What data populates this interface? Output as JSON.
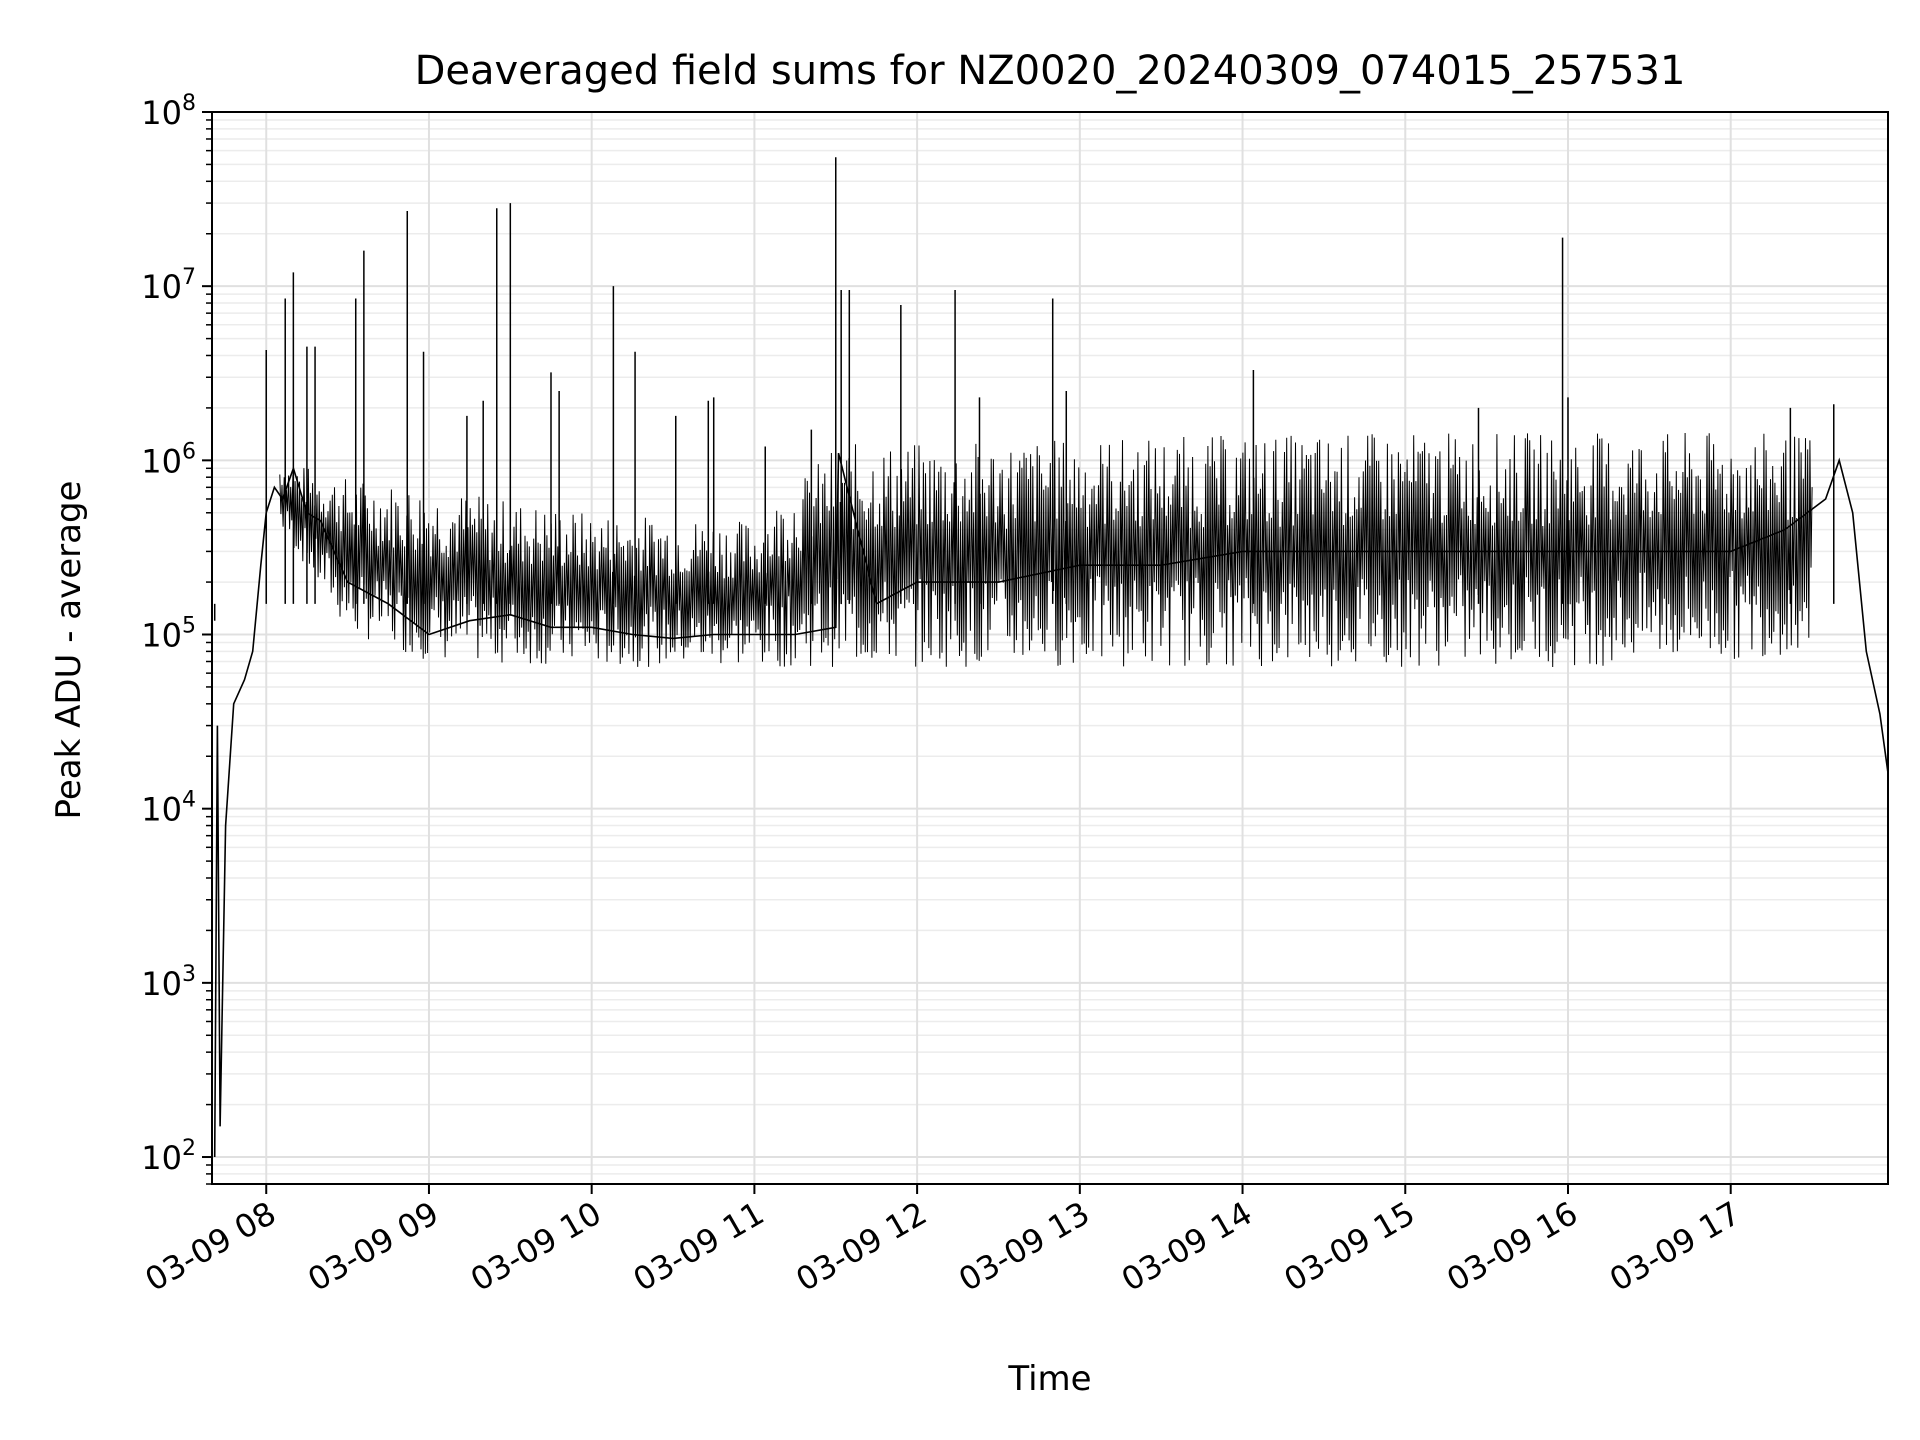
{
  "chart_data": {
    "type": "line",
    "title": "Deaveraged field sums for NZ0020_20240309_074015_257531",
    "xlabel": "Time",
    "ylabel": "Peak ADU - average",
    "yscale": "log",
    "ylim": [
      70,
      100000000
    ],
    "xlim": [
      "2024-03-09 07:40",
      "2024-03-09 17:58"
    ],
    "grid": true,
    "x_ticks": [
      "03-09 08",
      "03-09 09",
      "03-09 10",
      "03-09 11",
      "03-09 12",
      "03-09 13",
      "03-09 14",
      "03-09 15",
      "03-09 16",
      "03-09 17"
    ],
    "y_ticks": [
      100,
      1000,
      10000,
      100000,
      1000000,
      10000000,
      100000000
    ],
    "y_tick_labels": [
      {
        "base": "10",
        "exp": "2"
      },
      {
        "base": "10",
        "exp": "3"
      },
      {
        "base": "10",
        "exp": "4"
      },
      {
        "base": "10",
        "exp": "5"
      },
      {
        "base": "10",
        "exp": "6"
      },
      {
        "base": "10",
        "exp": "7"
      },
      {
        "base": "10",
        "exp": "8"
      }
    ],
    "series": [
      {
        "color": "#000000",
        "x": [
          "2024-03-09 07:41",
          "2024-03-09 07:42",
          "2024-03-09 07:43",
          "2024-03-09 07:45",
          "2024-03-09 07:48",
          "2024-03-09 07:52",
          "2024-03-09 07:55",
          "2024-03-09 07:58",
          "2024-03-09 08:00",
          "2024-03-09 08:03",
          "2024-03-09 08:06",
          "2024-03-09 08:10",
          "2024-03-09 08:15",
          "2024-03-09 08:20",
          "2024-03-09 08:30",
          "2024-03-09 08:45",
          "2024-03-09 09:00",
          "2024-03-09 09:15",
          "2024-03-09 09:30",
          "2024-03-09 09:45",
          "2024-03-09 10:00",
          "2024-03-09 10:15",
          "2024-03-09 10:30",
          "2024-03-09 10:45",
          "2024-03-09 11:00",
          "2024-03-09 11:15",
          "2024-03-09 11:30",
          "2024-03-09 11:31",
          "2024-03-09 11:45",
          "2024-03-09 12:00",
          "2024-03-09 12:30",
          "2024-03-09 13:00",
          "2024-03-09 13:30",
          "2024-03-09 14:00",
          "2024-03-09 14:30",
          "2024-03-09 15:00",
          "2024-03-09 15:30",
          "2024-03-09 16:00",
          "2024-03-09 16:30",
          "2024-03-09 17:00",
          "2024-03-09 17:20",
          "2024-03-09 17:35",
          "2024-03-09 17:40",
          "2024-03-09 17:45",
          "2024-03-09 17:50",
          "2024-03-09 17:55",
          "2024-03-09 17:58"
        ],
        "values": [
          100,
          30000,
          150,
          8000,
          40000,
          55000,
          80000,
          250000,
          500000,
          700000,
          600000,
          900000,
          500000,
          450000,
          200000,
          150000,
          100000,
          120000,
          130000,
          110000,
          110000,
          100000,
          95000,
          100000,
          100000,
          100000,
          110000,
          1100000,
          150000,
          200000,
          200000,
          250000,
          250000,
          300000,
          300000,
          300000,
          300000,
          300000,
          300000,
          300000,
          400000,
          600000,
          1000000,
          500000,
          80000,
          35000,
          16000
        ]
      }
    ],
    "band": {
      "description_free": true,
      "x": [
        "2024-03-09 08:05",
        "2024-03-09 08:30",
        "2024-03-09 09:00",
        "2024-03-09 10:00",
        "2024-03-09 11:00",
        "2024-03-09 11:30",
        "2024-03-09 12:00",
        "2024-03-09 13:00",
        "2024-03-09 14:00",
        "2024-03-09 15:00",
        "2024-03-09 16:00",
        "2024-03-09 17:00",
        "2024-03-09 17:30"
      ],
      "low": [
        400000,
        100000,
        70000,
        65000,
        65000,
        65000,
        65000,
        65000,
        65000,
        65000,
        65000,
        70000,
        80000
      ],
      "high": [
        1000000,
        800000,
        700000,
        500000,
        450000,
        1250000,
        1250000,
        1350000,
        1400000,
        1450000,
        1450000,
        1450000,
        1400000
      ]
    },
    "spikes": [
      {
        "x": "2024-03-09 07:41",
        "value": 120000
      },
      {
        "x": "2024-03-09 08:00",
        "value": 4300000
      },
      {
        "x": "2024-03-09 08:07",
        "value": 8500000
      },
      {
        "x": "2024-03-09 08:10",
        "value": 12000000
      },
      {
        "x": "2024-03-09 08:15",
        "value": 4500000
      },
      {
        "x": "2024-03-09 08:18",
        "value": 4500000
      },
      {
        "x": "2024-03-09 08:33",
        "value": 8500000
      },
      {
        "x": "2024-03-09 08:36",
        "value": 16000000
      },
      {
        "x": "2024-03-09 08:52",
        "value": 27000000
      },
      {
        "x": "2024-03-09 08:58",
        "value": 4200000
      },
      {
        "x": "2024-03-09 09:14",
        "value": 1800000
      },
      {
        "x": "2024-03-09 09:20",
        "value": 2200000
      },
      {
        "x": "2024-03-09 09:25",
        "value": 28000000
      },
      {
        "x": "2024-03-09 09:30",
        "value": 30000000
      },
      {
        "x": "2024-03-09 09:45",
        "value": 3200000
      },
      {
        "x": "2024-03-09 09:48",
        "value": 2500000
      },
      {
        "x": "2024-03-09 10:08",
        "value": 10000000
      },
      {
        "x": "2024-03-09 10:16",
        "value": 4200000
      },
      {
        "x": "2024-03-09 10:31",
        "value": 1800000
      },
      {
        "x": "2024-03-09 10:43",
        "value": 2200000
      },
      {
        "x": "2024-03-09 10:45",
        "value": 2300000
      },
      {
        "x": "2024-03-09 11:04",
        "value": 1200000
      },
      {
        "x": "2024-03-09 11:21",
        "value": 1500000
      },
      {
        "x": "2024-03-09 11:30",
        "value": 55000000
      },
      {
        "x": "2024-03-09 11:32",
        "value": 9500000
      },
      {
        "x": "2024-03-09 11:35",
        "value": 9500000
      },
      {
        "x": "2024-03-09 11:54",
        "value": 7800000
      },
      {
        "x": "2024-03-09 12:14",
        "value": 9500000
      },
      {
        "x": "2024-03-09 12:23",
        "value": 2300000
      },
      {
        "x": "2024-03-09 12:50",
        "value": 8500000
      },
      {
        "x": "2024-03-09 12:55",
        "value": 2500000
      },
      {
        "x": "2024-03-09 14:04",
        "value": 3300000
      },
      {
        "x": "2024-03-09 15:27",
        "value": 2000000
      },
      {
        "x": "2024-03-09 15:58",
        "value": 19000000
      },
      {
        "x": "2024-03-09 16:00",
        "value": 2300000
      },
      {
        "x": "2024-03-09 17:22",
        "value": 2000000
      },
      {
        "x": "2024-03-09 17:38",
        "value": 2100000
      }
    ]
  }
}
